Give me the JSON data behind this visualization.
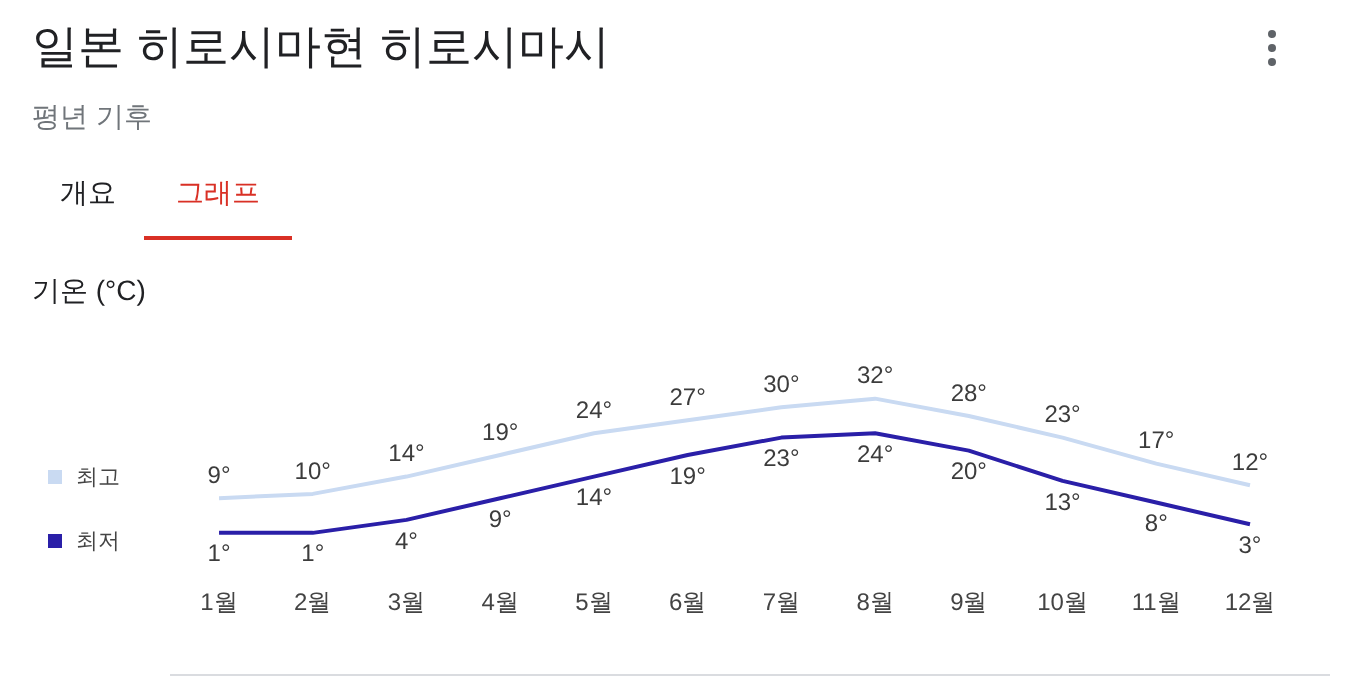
{
  "chart_data": {
    "type": "line",
    "title": "일본 히로시마현 히로시마시",
    "subtitle": "평년 기후",
    "ylabel": "기온 (°C)",
    "annotations": [
      "개요",
      "그래프"
    ],
    "categories": [
      "1월",
      "2월",
      "3월",
      "4월",
      "5월",
      "6월",
      "7월",
      "8월",
      "9월",
      "10월",
      "11월",
      "12월"
    ],
    "series": [
      {
        "name": "최고",
        "color": "#c9daf2",
        "values": [
          9,
          10,
          14,
          19,
          24,
          27,
          30,
          32,
          28,
          23,
          17,
          12
        ],
        "value_labels": [
          "9°",
          "10°",
          "14°",
          "19°",
          "24°",
          "27°",
          "30°",
          "32°",
          "28°",
          "23°",
          "17°",
          "12°"
        ]
      },
      {
        "name": "최저",
        "color": "#2a1fa8",
        "values": [
          1,
          1,
          4,
          9,
          14,
          19,
          23,
          24,
          20,
          13,
          8,
          3
        ],
        "value_labels": [
          "1°",
          "1°",
          "4°",
          "9°",
          "14°",
          "19°",
          "23°",
          "24°",
          "20°",
          "13°",
          "8°",
          "3°"
        ]
      }
    ],
    "legend": "left",
    "grid": false,
    "marker": "none"
  }
}
